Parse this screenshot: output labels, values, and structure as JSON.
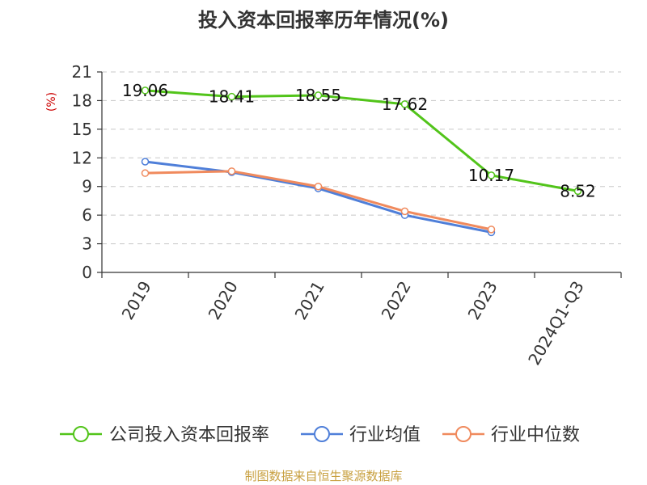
{
  "chart_data": {
    "type": "line",
    "title": "投入资本回报率历年情况(%)",
    "ylabel": "(%)",
    "xlabel": "",
    "categories": [
      "2019",
      "2020",
      "2021",
      "2022",
      "2023",
      "2024Q1-Q3"
    ],
    "ylim": [
      0,
      21
    ],
    "yticks": [
      0,
      3,
      6,
      9,
      12,
      15,
      18,
      21
    ],
    "grid": true,
    "legend_position": "bottom",
    "series": [
      {
        "name": "公司投入资本回报率",
        "color": "#52c41a",
        "values": [
          19.06,
          18.41,
          18.55,
          17.62,
          10.17,
          8.52
        ],
        "data_labels": [
          "19.06",
          "18.41",
          "18.55",
          "17.62",
          "10.17",
          "8.52"
        ]
      },
      {
        "name": "行业均值",
        "color": "#4f7fd9",
        "values": [
          11.6,
          10.5,
          8.8,
          6.0,
          4.2,
          null
        ]
      },
      {
        "name": "行业中位数",
        "color": "#f08a5d",
        "values": [
          10.4,
          10.6,
          9.0,
          6.4,
          4.5,
          null
        ]
      }
    ]
  },
  "source": "制图数据来自恒生聚源数据库"
}
